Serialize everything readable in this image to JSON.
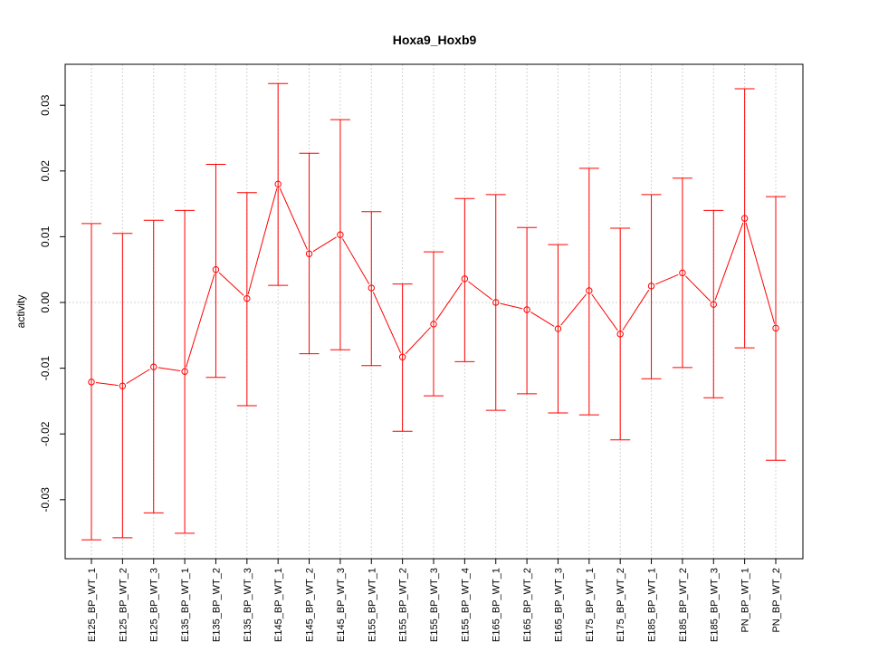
{
  "chart_data": {
    "type": "line",
    "title": "Hoxa9_Hoxb9",
    "xlabel": "",
    "ylabel": "activity",
    "ylim": [
      -0.0385,
      0.0362
    ],
    "yticks": [
      -0.03,
      -0.02,
      -0.01,
      0.0,
      0.01,
      0.02,
      0.03
    ],
    "ytick_labels": [
      "-0.03",
      "-0.02",
      "-0.01",
      "0.00",
      "0.01",
      "0.02",
      "0.03"
    ],
    "grid": true,
    "categories": [
      "E125_BP_WT_1",
      "E125_BP_WT_2",
      "E125_BP_WT_3",
      "E135_BP_WT_1",
      "E135_BP_WT_2",
      "E135_BP_WT_3",
      "E145_BP_WT_1",
      "E145_BP_WT_2",
      "E145_BP_WT_3",
      "E155_BP_WT_1",
      "E155_BP_WT_2",
      "E155_BP_WT_3",
      "E155_BP_WT_4",
      "E165_BP_WT_1",
      "E165_BP_WT_2",
      "E165_BP_WT_3",
      "E175_BP_WT_1",
      "E175_BP_WT_2",
      "E185_BP_WT_1",
      "E185_BP_WT_2",
      "E185_BP_WT_3",
      "PN_BP_WT_1",
      "PN_BP_WT_2"
    ],
    "series": [
      {
        "name": "activity",
        "color": "#ff0000",
        "values": [
          -0.0121,
          -0.0127,
          -0.0098,
          -0.0105,
          0.005,
          0.0006,
          0.018,
          0.0074,
          0.0103,
          0.0022,
          -0.0083,
          -0.0033,
          0.0036,
          0.0,
          -0.0011,
          -0.004,
          0.0018,
          -0.0048,
          0.0025,
          0.0045,
          -0.0003,
          0.0128,
          -0.0039
        ],
        "upper": [
          0.012,
          0.0105,
          0.0125,
          0.014,
          0.021,
          0.0167,
          0.0333,
          0.0227,
          0.0278,
          0.0138,
          0.0028,
          0.0077,
          0.0158,
          0.0164,
          0.0114,
          0.0088,
          0.0204,
          0.0113,
          0.0164,
          0.0189,
          0.014,
          0.0325,
          0.0161
        ],
        "lower": [
          -0.0361,
          -0.0358,
          -0.032,
          -0.0351,
          -0.0114,
          -0.0157,
          0.0026,
          -0.0078,
          -0.0072,
          -0.0096,
          -0.0196,
          -0.0142,
          -0.009,
          -0.0164,
          -0.0139,
          -0.0168,
          -0.0171,
          -0.0209,
          -0.0116,
          -0.0099,
          -0.0145,
          -0.0069,
          -0.024
        ]
      }
    ]
  }
}
